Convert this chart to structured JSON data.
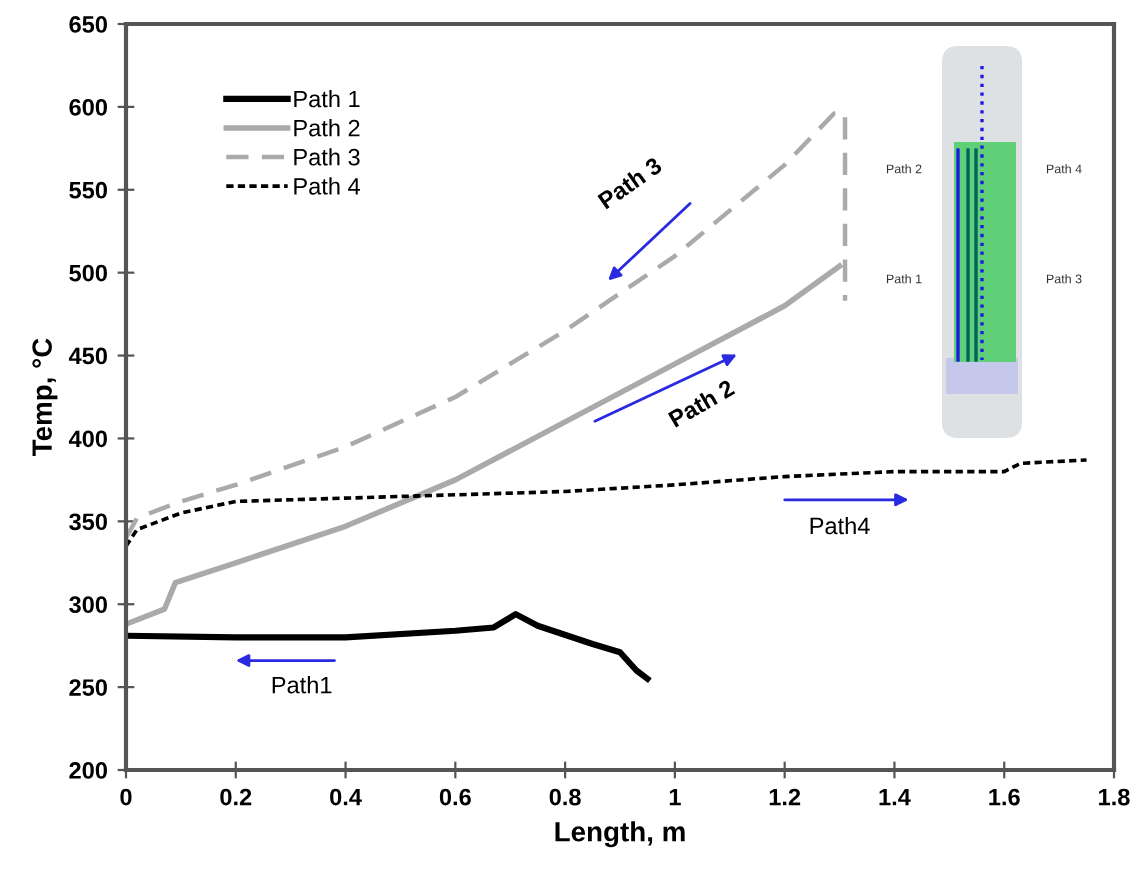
{
  "chart_data": {
    "type": "line",
    "xlabel": "Length, m",
    "ylabel": "Temp, °C",
    "xlim": [
      0,
      1.8
    ],
    "xticks": [
      0,
      0.2,
      0.4,
      0.6,
      0.8,
      1,
      1.2,
      1.4,
      1.6,
      1.8
    ],
    "ylim": [
      200,
      650
    ],
    "yticks": [
      200,
      250,
      300,
      350,
      400,
      450,
      500,
      550,
      600,
      650
    ],
    "grid": false,
    "legend": "top left",
    "series": [
      {
        "name": "Path 1",
        "color": "#000000",
        "line_style": "solid",
        "x": [
          0,
          0.2,
          0.4,
          0.6,
          0.67,
          0.71,
          0.75,
          0.85,
          0.9,
          0.93,
          0.95
        ],
        "values": [
          281,
          280,
          280,
          284,
          286,
          294,
          287,
          276,
          271,
          260,
          255
        ]
      },
      {
        "name": "Path 2",
        "color": "#aaaaaa",
        "line_style": "solid",
        "x": [
          0,
          0.07,
          0.09,
          0.2,
          0.4,
          0.6,
          0.8,
          1.0,
          1.2,
          1.3
        ],
        "values": [
          288,
          297,
          313,
          325,
          347,
          375,
          410,
          445,
          480,
          504
        ]
      },
      {
        "name": "Path 3",
        "color": "#aaaaaa",
        "line_style": "dashed",
        "x": [
          0,
          0.02,
          0.1,
          0.2,
          0.4,
          0.6,
          0.8,
          1.0,
          1.2,
          1.29,
          1.31,
          1.31
        ],
        "values": [
          340,
          352,
          362,
          372,
          395,
          425,
          465,
          510,
          565,
          596,
          596,
          483
        ]
      },
      {
        "name": "Path 4",
        "color": "#000000",
        "line_style": "dotted",
        "x": [
          0,
          0.02,
          0.1,
          0.2,
          0.4,
          0.6,
          0.8,
          1.0,
          1.2,
          1.4,
          1.6,
          1.63,
          1.75
        ],
        "values": [
          335,
          345,
          355,
          362,
          364,
          366,
          368,
          372,
          377,
          380,
          380,
          385,
          387
        ]
      }
    ],
    "annotations": [
      "Path 3",
      "Path 2",
      "Path4",
      "Path1",
      "Path 2",
      "Path 4",
      "Path 1",
      "Path 3"
    ]
  }
}
